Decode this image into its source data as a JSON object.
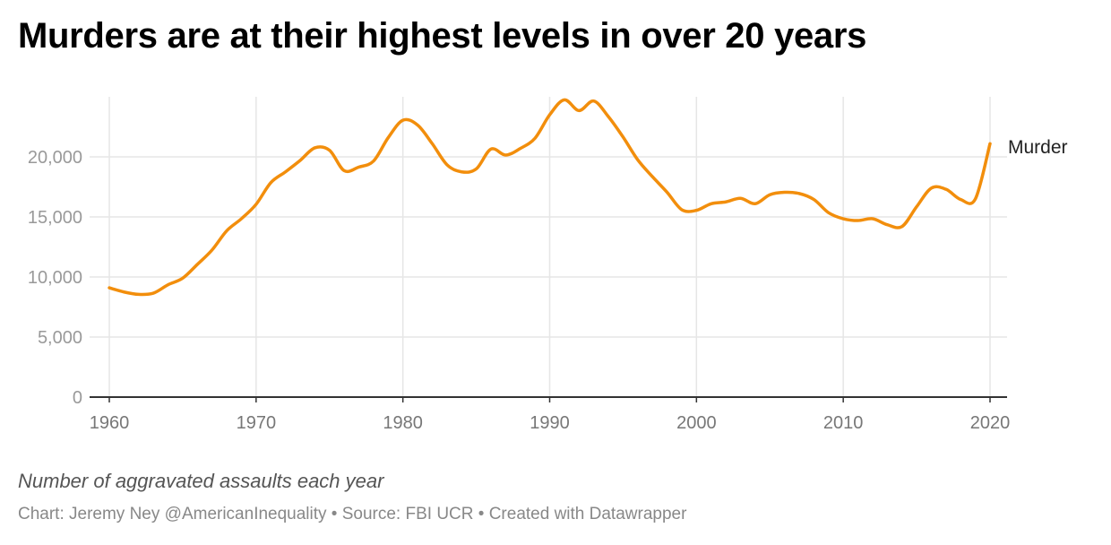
{
  "header": {
    "title": "Murders are at their highest levels in over 20 years"
  },
  "footer": {
    "note": "Number of aggravated assaults each year",
    "credit": "Chart: Jeremy Ney @AmericanInequality • Source: FBI UCR • Created with Datawrapper"
  },
  "chart_data": {
    "type": "line",
    "title": "Murders are at their highest levels in over 20 years",
    "xlabel": "",
    "ylabel": "",
    "xlim": [
      1960,
      2020
    ],
    "ylim": [
      0,
      25000
    ],
    "x_ticks": [
      1960,
      1970,
      1980,
      1990,
      2000,
      2010,
      2020
    ],
    "x_tick_labels": [
      "1960",
      "1970",
      "1980",
      "1990",
      "2000",
      "2010",
      "2020"
    ],
    "y_ticks": [
      0,
      5000,
      10000,
      15000,
      20000
    ],
    "y_tick_labels": [
      "0",
      "5,000",
      "10,000",
      "15,000",
      "20,000"
    ],
    "grid": true,
    "series": [
      {
        "name": "Murder",
        "color": "#f28e0c",
        "x": [
          1960,
          1961,
          1962,
          1963,
          1964,
          1965,
          1966,
          1967,
          1968,
          1969,
          1970,
          1971,
          1972,
          1973,
          1974,
          1975,
          1976,
          1977,
          1978,
          1979,
          1980,
          1981,
          1982,
          1983,
          1984,
          1985,
          1986,
          1987,
          1988,
          1989,
          1990,
          1991,
          1992,
          1993,
          1994,
          1995,
          1996,
          1997,
          1998,
          1999,
          2000,
          2001,
          2002,
          2003,
          2004,
          2005,
          2006,
          2007,
          2008,
          2009,
          2010,
          2011,
          2012,
          2013,
          2014,
          2015,
          2016,
          2017,
          2018,
          2019,
          2020
        ],
        "values": [
          9100,
          8750,
          8550,
          8650,
          9350,
          9900,
          11050,
          12250,
          13850,
          14850,
          16050,
          17850,
          18750,
          19700,
          20750,
          20550,
          18850,
          19150,
          19650,
          21600,
          23050,
          22650,
          21100,
          19350,
          18750,
          19000,
          20650,
          20150,
          20700,
          21550,
          23500,
          24750,
          23850,
          24650,
          23350,
          21650,
          19750,
          18350,
          17050,
          15600,
          15550,
          16100,
          16250,
          16550,
          16100,
          16850,
          17050,
          16950,
          16450,
          15350,
          14850,
          14700,
          14850,
          14350,
          14200,
          15850,
          17400,
          17300,
          16450,
          16500,
          21100
        ]
      }
    ]
  }
}
